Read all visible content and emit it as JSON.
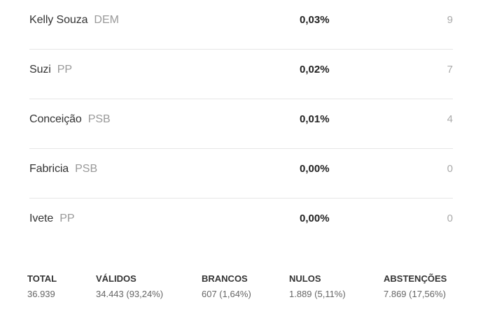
{
  "candidates": [
    {
      "name": "Kelly Souza",
      "party": "DEM",
      "percent": "0,03%",
      "votes": "9"
    },
    {
      "name": "Suzi",
      "party": "PP",
      "percent": "0,02%",
      "votes": "7"
    },
    {
      "name": "Conceição",
      "party": "PSB",
      "percent": "0,01%",
      "votes": "4"
    },
    {
      "name": "Fabricia",
      "party": "PSB",
      "percent": "0,00%",
      "votes": "0"
    },
    {
      "name": "Ivete",
      "party": "PP",
      "percent": "0,00%",
      "votes": "0"
    }
  ],
  "summary": {
    "total": {
      "label": "TOTAL",
      "value": "36.939"
    },
    "validos": {
      "label": "VÁLIDOS",
      "value": "34.443 (93,24%)"
    },
    "brancos": {
      "label": "BRANCOS",
      "value": "607 (1,64%)"
    },
    "nulos": {
      "label": "NULOS",
      "value": "1.889 (5,11%)"
    },
    "abstencoes": {
      "label": "ABSTENÇÕES",
      "value": "7.869 (17,56%)"
    }
  }
}
